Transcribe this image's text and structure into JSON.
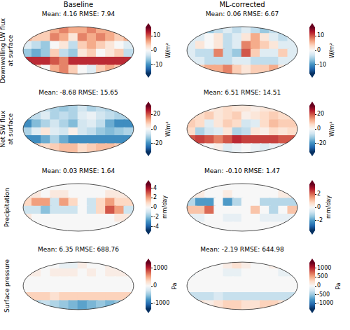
{
  "column_titles": [
    "Baseline",
    "ML-corrected"
  ],
  "row_labels": [
    [
      "Downwelling LW flux",
      "at surface"
    ],
    [
      "Net SW flux",
      "at surface"
    ],
    [
      "Precipitation"
    ],
    [
      "Surface pressure"
    ]
  ],
  "chart_data": [
    {
      "type": "heatmap",
      "title": "Mean: 4.16 RMSE: 7.94",
      "tick_labels": false,
      "x": [
        -165,
        -135,
        -105,
        -75,
        -45,
        -15,
        15,
        45,
        75,
        105,
        135,
        165
      ],
      "y": [
        75,
        45,
        15,
        -15,
        -45,
        -75
      ],
      "xlim": [
        -180,
        180
      ],
      "ylim": [
        -90,
        90
      ],
      "cells": [
        [
          6,
          6,
          4,
          6,
          8,
          6,
          6,
          8,
          6,
          6,
          6,
          6
        ],
        [
          6,
          4,
          4,
          8,
          6,
          2,
          8,
          6,
          8,
          6,
          4,
          6
        ],
        [
          -2,
          -4,
          -6,
          0,
          2,
          -4,
          4,
          6,
          4,
          2,
          0,
          -2
        ],
        [
          -6,
          -8,
          -6,
          4,
          -4,
          -6,
          2,
          4,
          0,
          2,
          4,
          -4
        ],
        [
          12,
          12,
          12,
          10,
          8,
          12,
          12,
          12,
          12,
          12,
          12,
          12
        ],
        [
          6,
          4,
          0,
          6,
          8,
          4,
          0,
          -2,
          4,
          6,
          4,
          6
        ]
      ],
      "colorbar": {
        "label": "W/m²",
        "range": [
          -16,
          16
        ],
        "ticks": [
          -10,
          0,
          10
        ]
      }
    },
    {
      "type": "heatmap",
      "title": "Mean: 0.06 RMSE: 6.67",
      "tick_labels": false,
      "x": [
        -165,
        -135,
        -105,
        -75,
        -45,
        -15,
        15,
        45,
        75,
        105,
        135,
        165
      ],
      "y": [
        75,
        45,
        15,
        -15,
        -45,
        -75
      ],
      "xlim": [
        -180,
        180
      ],
      "ylim": [
        -90,
        90
      ],
      "cells": [
        [
          -4,
          -4,
          -6,
          -4,
          -2,
          -4,
          -2,
          -4,
          -6,
          -4,
          -6,
          -4
        ],
        [
          -2,
          -2,
          0,
          2,
          -4,
          -2,
          2,
          6,
          2,
          -2,
          -4,
          -2
        ],
        [
          -2,
          2,
          0,
          2,
          -4,
          -2,
          8,
          6,
          4,
          2,
          -2,
          -2
        ],
        [
          -2,
          -4,
          -4,
          8,
          -4,
          -6,
          10,
          4,
          -2,
          -2,
          4,
          -2
        ],
        [
          -2,
          -2,
          -4,
          -4,
          -4,
          -2,
          -2,
          -4,
          -4,
          -4,
          -2,
          -2
        ],
        [
          2,
          4,
          6,
          6,
          8,
          4,
          2,
          4,
          4,
          6,
          2,
          2
        ]
      ],
      "colorbar": {
        "label": "W/m²",
        "range": [
          -16,
          16
        ],
        "ticks": [
          -10,
          0,
          10
        ]
      }
    },
    {
      "type": "heatmap",
      "title": "Mean: -8.68 RMSE: 15.65",
      "tick_labels": false,
      "x": [
        -165,
        -135,
        -105,
        -75,
        -45,
        -15,
        15,
        45,
        75,
        105,
        135,
        165
      ],
      "y": [
        75,
        45,
        15,
        -15,
        -45,
        -75
      ],
      "xlim": [
        -180,
        180
      ],
      "ylim": [
        -90,
        90
      ],
      "cells": [
        [
          -10,
          -10,
          -8,
          -10,
          -12,
          -10,
          -6,
          -10,
          -8,
          -10,
          -10,
          -10
        ],
        [
          -10,
          -8,
          -4,
          -10,
          -8,
          -10,
          -4,
          -2,
          -6,
          -8,
          -10,
          -10
        ],
        [
          -20,
          -14,
          -10,
          -6,
          -10,
          -14,
          -6,
          -4,
          -8,
          -16,
          -20,
          -20
        ],
        [
          -10,
          -4,
          4,
          -4,
          -6,
          2,
          -6,
          -8,
          -12,
          -14,
          -12,
          -10
        ],
        [
          -20,
          -20,
          -16,
          -10,
          -16,
          -20,
          -20,
          -20,
          -20,
          -20,
          -20,
          -20
        ],
        [
          10,
          8,
          6,
          8,
          10,
          10,
          6,
          8,
          10,
          10,
          8,
          10
        ]
      ],
      "colorbar": {
        "label": "W/m²",
        "range": [
          -32,
          32
        ],
        "ticks": [
          -20,
          0,
          20
        ]
      }
    },
    {
      "type": "heatmap",
      "title": "Mean: 6.51 RMSE: 14.51",
      "tick_labels": false,
      "x": [
        -165,
        -135,
        -105,
        -75,
        -45,
        -15,
        15,
        45,
        75,
        105,
        135,
        165
      ],
      "y": [
        75,
        45,
        15,
        -15,
        -45,
        -75
      ],
      "xlim": [
        -180,
        180
      ],
      "ylim": [
        -90,
        90
      ],
      "cells": [
        [
          4,
          4,
          2,
          4,
          6,
          4,
          4,
          2,
          4,
          4,
          4,
          4
        ],
        [
          6,
          6,
          8,
          4,
          6,
          8,
          2,
          4,
          6,
          8,
          6,
          6
        ],
        [
          8,
          6,
          -4,
          4,
          8,
          6,
          -6,
          -4,
          6,
          10,
          8,
          8
        ],
        [
          6,
          -10,
          -6,
          -4,
          4,
          -10,
          -8,
          4,
          2,
          6,
          4,
          6
        ],
        [
          20,
          22,
          20,
          16,
          20,
          24,
          22,
          22,
          22,
          22,
          20,
          20
        ],
        [
          -4,
          -2,
          0,
          2,
          -4,
          -2,
          0,
          -2,
          -4,
          -2,
          -4,
          -4
        ]
      ],
      "colorbar": {
        "label": "W/m²",
        "range": [
          -32,
          32
        ],
        "ticks": [
          -20,
          0,
          20
        ]
      }
    },
    {
      "type": "heatmap",
      "title": "Mean: 0.03 RMSE: 1.64",
      "tick_labels": false,
      "x": [
        -165,
        -135,
        -105,
        -75,
        -45,
        -15,
        15,
        45,
        75,
        105,
        135,
        165
      ],
      "y": [
        75,
        45,
        15,
        -15,
        -45,
        -75
      ],
      "xlim": [
        -180,
        180
      ],
      "ylim": [
        -90,
        90
      ],
      "cells": [
        [
          0,
          0,
          0,
          0,
          0,
          0,
          0,
          0,
          0,
          0,
          0,
          0
        ],
        [
          0.5,
          0.5,
          0,
          0.5,
          0.5,
          0,
          0,
          0,
          0,
          0.5,
          0.5,
          0.5
        ],
        [
          1,
          2,
          2,
          -1,
          2,
          1,
          0,
          -1,
          1,
          2,
          1,
          1
        ],
        [
          -1,
          -1,
          -2,
          -1,
          -1,
          -1,
          0,
          -1,
          1,
          3,
          2,
          -1
        ],
        [
          0.5,
          0,
          0,
          0,
          0,
          0,
          0,
          0,
          0,
          0,
          0.5,
          0.5
        ],
        [
          0,
          0,
          0,
          0,
          0,
          0,
          0,
          0,
          0,
          0,
          0,
          0
        ]
      ],
      "colorbar": {
        "label": "mm/day",
        "range": [
          -4.8,
          4.8
        ],
        "ticks": [
          -4,
          -2,
          0,
          2,
          4
        ]
      }
    },
    {
      "type": "heatmap",
      "title": "Mean: -0.10 RMSE: 1.47",
      "tick_labels": false,
      "x": [
        -165,
        -135,
        -105,
        -75,
        -45,
        -15,
        15,
        45,
        75,
        105,
        135,
        165
      ],
      "y": [
        75,
        45,
        15,
        -15,
        -45,
        -75
      ],
      "xlim": [
        -180,
        180
      ],
      "ylim": [
        -90,
        90
      ],
      "cells": [
        [
          0,
          0,
          0,
          0,
          0,
          0,
          0,
          0,
          0,
          0,
          0,
          0
        ],
        [
          0.3,
          0.3,
          0,
          0,
          0.3,
          0,
          0,
          0,
          0,
          0,
          0.3,
          0.3
        ],
        [
          -1,
          -2,
          -2,
          0,
          -2,
          -1,
          0,
          0,
          -1,
          -1,
          -1,
          -1
        ],
        [
          1,
          1,
          2,
          0,
          0,
          0,
          0,
          1,
          0,
          -1,
          0,
          1
        ],
        [
          -0.3,
          -0.3,
          0,
          0,
          -0.3,
          -0.3,
          0,
          0,
          -0.3,
          -0.3,
          -0.3,
          -0.3
        ],
        [
          0,
          0,
          0,
          0,
          0,
          0,
          0,
          0,
          0,
          0,
          0,
          0
        ]
      ],
      "colorbar": {
        "label": "mm/day",
        "range": [
          -3.5,
          3.5
        ],
        "ticks": [
          -2,
          0,
          2
        ]
      }
    },
    {
      "type": "heatmap",
      "title": "Mean: 6.35 RMSE: 688.76",
      "tick_labels": false,
      "x": [
        -165,
        -135,
        -105,
        -75,
        -45,
        -15,
        15,
        45,
        75,
        105,
        135,
        165
      ],
      "y": [
        75,
        45,
        15,
        -15,
        -45,
        -75
      ],
      "xlim": [
        -180,
        180
      ],
      "ylim": [
        -90,
        90
      ],
      "cells": [
        [
          -200,
          -100,
          0,
          0,
          -100,
          -100,
          100,
          0,
          0,
          100,
          0,
          -200
        ],
        [
          100,
          100,
          0,
          100,
          100,
          100,
          0,
          100,
          0,
          100,
          100,
          100
        ],
        [
          0,
          0,
          0,
          0,
          0,
          0,
          0,
          0,
          0,
          0,
          0,
          0
        ],
        [
          0,
          0,
          0,
          0,
          0,
          0,
          0,
          0,
          0,
          0,
          0,
          0
        ],
        [
          300,
          300,
          300,
          200,
          300,
          300,
          300,
          300,
          300,
          300,
          300,
          300
        ],
        [
          -600,
          -400,
          -300,
          -400,
          -500,
          -600,
          -700,
          -600,
          -500,
          -600,
          -500,
          -600
        ]
      ],
      "colorbar": {
        "label": "Pa",
        "range": [
          -1300,
          1300
        ],
        "ticks": [
          -1000,
          0,
          1000
        ]
      }
    },
    {
      "type": "heatmap",
      "title": "Mean: -2.19 RMSE: 644.98",
      "tick_labels": false,
      "x": [
        -165,
        -135,
        -105,
        -75,
        -45,
        -15,
        15,
        45,
        75,
        105,
        135,
        165
      ],
      "y": [
        75,
        45,
        15,
        -15,
        -45,
        -75
      ],
      "xlim": [
        -180,
        180
      ],
      "ylim": [
        -90,
        90
      ],
      "cells": [
        [
          100,
          100,
          0,
          0,
          100,
          200,
          100,
          0,
          0,
          100,
          100,
          100
        ],
        [
          -100,
          0,
          0,
          0,
          -100,
          -100,
          0,
          0,
          0,
          0,
          -100,
          -100
        ],
        [
          0,
          0,
          0,
          0,
          0,
          0,
          0,
          0,
          0,
          0,
          0,
          0
        ],
        [
          0,
          0,
          0,
          0,
          0,
          0,
          0,
          0,
          0,
          0,
          0,
          0
        ],
        [
          -300,
          -300,
          -300,
          -200,
          -300,
          -300,
          -300,
          -300,
          -300,
          -300,
          -300,
          -300
        ],
        [
          300,
          200,
          100,
          200,
          300,
          300,
          200,
          200,
          300,
          300,
          200,
          300
        ]
      ],
      "colorbar": {
        "label": "Pa",
        "range": [
          -1300,
          1300
        ],
        "ticks": [
          -1000,
          -500,
          0,
          500,
          1000
        ]
      }
    }
  ]
}
